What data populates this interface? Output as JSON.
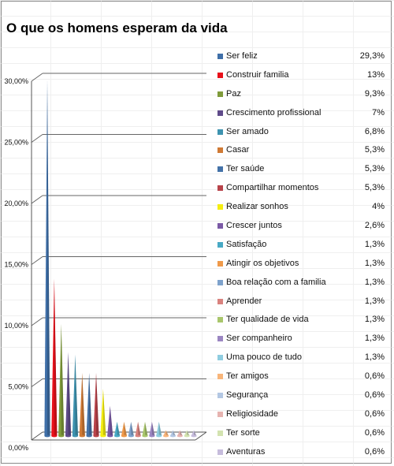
{
  "chart_data": {
    "type": "bar",
    "title": "O que os homens esperam da vida",
    "xlabel": "",
    "ylabel": "",
    "ylim": [
      0,
      30
    ],
    "yticks": [
      "0,00%",
      "5,00%",
      "10,00%",
      "15,00%",
      "20,00%",
      "25,00%",
      "30,00%"
    ],
    "bar_shape": "cone",
    "legend_position": "right",
    "grid": true,
    "categories": [
      "Ser feliz",
      "Construir familia",
      "Paz",
      "Crescimento profissional",
      "Ser amado",
      "Casar",
      "Ter saúde",
      "Compartilhar momentos",
      "Realizar sonhos",
      "Crescer juntos",
      "Satisfação",
      "Atingir os objetivos",
      "Boa relação com a familia",
      "Aprender",
      "Ter qualidade de vida",
      "Ser companheiro",
      "Uma pouco de tudo",
      "Ter amigos",
      "Segurança",
      "Religiosidade",
      "Ter sorte",
      "Aventuras"
    ],
    "values": [
      29.3,
      13,
      9.3,
      7,
      6.8,
      5.3,
      5.3,
      5.3,
      4,
      2.6,
      1.3,
      1.3,
      1.3,
      1.3,
      1.3,
      1.3,
      1.3,
      0.6,
      0.6,
      0.6,
      0.6,
      0.6
    ],
    "value_labels": [
      "29,3%",
      "13%",
      "9,3%",
      "7%",
      "6,8%",
      "5,3%",
      "5,3%",
      "5,3%",
      "4%",
      "2,6%",
      "1,3%",
      "1,3%",
      "1,3%",
      "1,3%",
      "1,3%",
      "1,3%",
      "1,3%",
      "0,6%",
      "0,6%",
      "0,6%",
      "0,6%",
      "0,6%"
    ],
    "colors": [
      "#3f6fa8",
      "#e8101a",
      "#7f9b3a",
      "#5f4b8a",
      "#3e93b0",
      "#d07a35",
      "#4472a8",
      "#b8434a",
      "#f5ee10",
      "#7b5aa6",
      "#48a9c5",
      "#f09a4a",
      "#7ea2cc",
      "#d9827e",
      "#a9c66c",
      "#9b86c2",
      "#8fcde0",
      "#f8b57a",
      "#b3c7e3",
      "#e6b3b0",
      "#d3e3b0",
      "#c6bcdc"
    ]
  }
}
